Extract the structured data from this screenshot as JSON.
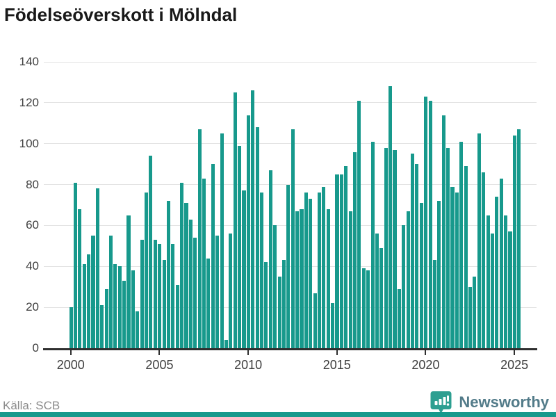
{
  "title": "Födelseöverskott i Mölndal",
  "source": "Källa: SCB",
  "branding": {
    "logo_text": "Newsworthy",
    "logo_icon": "bar-chart-speech-bubble"
  },
  "colors": {
    "bar": "#17998c",
    "grid": "#e3e3e3",
    "axis": "#2f2f2f",
    "tick_label": "#3d3d3d",
    "title": "#191919",
    "source": "#8b8b8b",
    "logo_icon": "#2d9f91",
    "logo_text": "#527b89",
    "brand_strip": "#17998c"
  },
  "chart_data": {
    "type": "bar",
    "title": "Födelseöverskott i Mölndal",
    "xlabel": "",
    "ylabel": "",
    "ylim": [
      0,
      140
    ],
    "y_ticks": [
      0,
      20,
      40,
      60,
      80,
      100,
      120,
      140
    ],
    "x_tick_labels": [
      "2000",
      "2005",
      "2010",
      "2015",
      "2020",
      "2025"
    ],
    "grid": "horizontal",
    "legend": "none",
    "x": [
      "2000-Q1",
      "2000-Q2",
      "2000-Q3",
      "2000-Q4",
      "2001-Q1",
      "2001-Q2",
      "2001-Q3",
      "2001-Q4",
      "2002-Q1",
      "2002-Q2",
      "2002-Q3",
      "2002-Q4",
      "2003-Q1",
      "2003-Q2",
      "2003-Q3",
      "2003-Q4",
      "2004-Q1",
      "2004-Q2",
      "2004-Q3",
      "2004-Q4",
      "2005-Q1",
      "2005-Q2",
      "2005-Q3",
      "2005-Q4",
      "2006-Q1",
      "2006-Q2",
      "2006-Q3",
      "2006-Q4",
      "2007-Q1",
      "2007-Q2",
      "2007-Q3",
      "2007-Q4",
      "2008-Q1",
      "2008-Q2",
      "2008-Q3",
      "2008-Q4",
      "2009-Q1",
      "2009-Q2",
      "2009-Q3",
      "2009-Q4",
      "2010-Q1",
      "2010-Q2",
      "2010-Q3",
      "2010-Q4",
      "2011-Q1",
      "2011-Q2",
      "2011-Q3",
      "2011-Q4",
      "2012-Q1",
      "2012-Q2",
      "2012-Q3",
      "2012-Q4",
      "2013-Q1",
      "2013-Q2",
      "2013-Q3",
      "2013-Q4",
      "2014-Q1",
      "2014-Q2",
      "2014-Q3",
      "2014-Q4",
      "2015-Q1",
      "2015-Q2",
      "2015-Q3",
      "2015-Q4",
      "2016-Q1",
      "2016-Q2",
      "2016-Q3",
      "2016-Q4",
      "2017-Q1",
      "2017-Q2",
      "2017-Q3",
      "2017-Q4",
      "2018-Q1",
      "2018-Q2",
      "2018-Q3",
      "2018-Q4",
      "2019-Q1",
      "2019-Q2",
      "2019-Q3",
      "2019-Q4",
      "2020-Q1",
      "2020-Q2",
      "2020-Q3",
      "2020-Q4",
      "2021-Q1",
      "2021-Q2",
      "2021-Q3",
      "2021-Q4",
      "2022-Q1",
      "2022-Q2",
      "2022-Q3",
      "2022-Q4",
      "2023-Q1",
      "2023-Q2",
      "2023-Q3",
      "2023-Q4",
      "2024-Q1",
      "2024-Q2",
      "2024-Q3",
      "2024-Q4",
      "2025-Q1",
      "2025-Q2"
    ],
    "values": [
      20,
      81,
      68,
      41,
      46,
      55,
      78,
      21,
      29,
      55,
      41,
      40,
      33,
      65,
      38,
      18,
      53,
      76,
      94,
      53,
      51,
      43,
      72,
      51,
      31,
      81,
      71,
      63,
      54,
      107,
      83,
      44,
      90,
      55,
      105,
      4,
      56,
      125,
      99,
      77,
      114,
      126,
      108,
      76,
      42,
      87,
      60,
      35,
      43,
      80,
      107,
      67,
      68,
      76,
      73,
      27,
      76,
      79,
      68,
      22,
      85,
      85,
      89,
      67,
      96,
      121,
      39,
      38,
      101,
      56,
      49,
      98,
      128,
      97,
      29,
      60,
      67,
      95,
      90,
      71,
      123,
      121,
      43,
      72,
      114,
      98,
      79,
      76,
      101,
      89,
      30,
      35,
      105,
      86,
      65,
      56,
      74,
      83,
      65,
      57,
      104,
      107
    ]
  },
  "layout_years_span": {
    "first_year": 2000,
    "tick_step_years": 5
  }
}
